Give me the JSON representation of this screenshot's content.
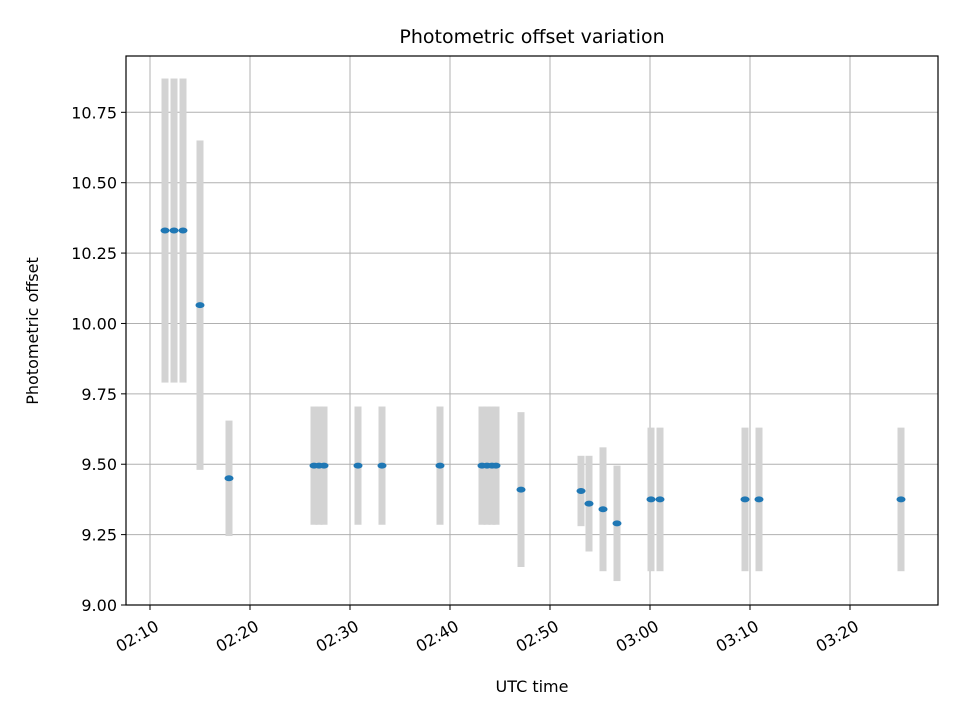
{
  "chart_data": {
    "type": "scatter",
    "title": "Photometric offset variation",
    "xlabel": "UTC time",
    "ylabel": "Photometric offset",
    "xlim": [
      "02:07:36",
      "03:28:48"
    ],
    "ylim": [
      9.0,
      10.95
    ],
    "grid": true,
    "x_ticks": [
      "02:10",
      "02:20",
      "02:30",
      "02:40",
      "02:50",
      "03:00",
      "03:10",
      "03:20"
    ],
    "y_ticks": [
      "9.00",
      "9.25",
      "9.50",
      "9.75",
      "10.00",
      "10.25",
      "10.50",
      "10.75"
    ],
    "point_color": "#1f77b4",
    "errorbar_color": "#d3d3d3",
    "points": [
      {
        "x": "02:11:30",
        "y": 10.33,
        "err": 0.54
      },
      {
        "x": "02:12:24",
        "y": 10.33,
        "err": 0.54
      },
      {
        "x": "02:13:18",
        "y": 10.33,
        "err": 0.54
      },
      {
        "x": "02:15:00",
        "y": 10.065,
        "err": 0.585
      },
      {
        "x": "02:17:54",
        "y": 9.45,
        "err": 0.205
      },
      {
        "x": "02:26:24",
        "y": 9.495,
        "err": 0.21
      },
      {
        "x": "02:26:54",
        "y": 9.495,
        "err": 0.21
      },
      {
        "x": "02:27:24",
        "y": 9.495,
        "err": 0.21
      },
      {
        "x": "02:30:48",
        "y": 9.495,
        "err": 0.21
      },
      {
        "x": "02:33:12",
        "y": 9.495,
        "err": 0.21
      },
      {
        "x": "02:39:00",
        "y": 9.495,
        "err": 0.21
      },
      {
        "x": "02:43:12",
        "y": 9.495,
        "err": 0.21
      },
      {
        "x": "02:43:42",
        "y": 9.495,
        "err": 0.21
      },
      {
        "x": "02:44:12",
        "y": 9.495,
        "err": 0.21
      },
      {
        "x": "02:44:36",
        "y": 9.495,
        "err": 0.21
      },
      {
        "x": "02:47:06",
        "y": 9.41,
        "err": 0.275
      },
      {
        "x": "02:53:06",
        "y": 9.405,
        "err": 0.125
      },
      {
        "x": "02:53:54",
        "y": 9.36,
        "err": 0.17
      },
      {
        "x": "02:55:18",
        "y": 9.34,
        "err": 0.22
      },
      {
        "x": "02:56:42",
        "y": 9.29,
        "err": 0.205
      },
      {
        "x": "03:00:06",
        "y": 9.375,
        "err": 0.255
      },
      {
        "x": "03:01:00",
        "y": 9.375,
        "err": 0.255
      },
      {
        "x": "03:09:30",
        "y": 9.375,
        "err": 0.255
      },
      {
        "x": "03:10:54",
        "y": 9.375,
        "err": 0.255
      },
      {
        "x": "03:25:06",
        "y": 9.375,
        "err": 0.255
      }
    ]
  }
}
